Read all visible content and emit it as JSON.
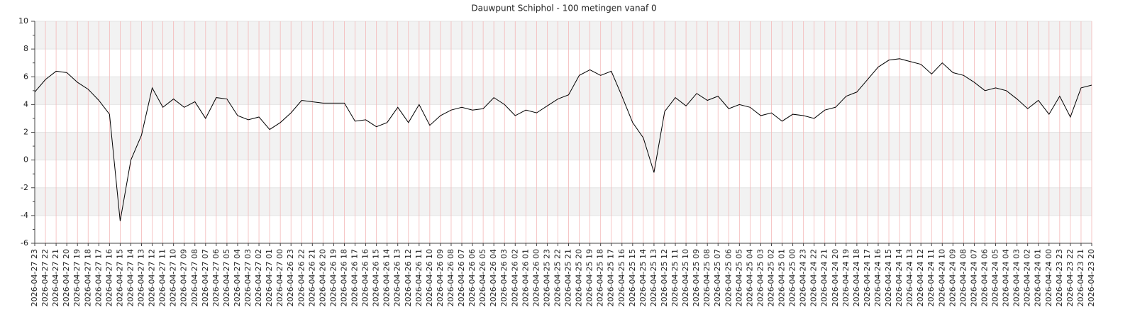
{
  "chart_data": {
    "type": "line",
    "title": "Dauwpunt Schiphol - 100 metingen vanaf 0",
    "categories": [
      "2026-04-27 23",
      "2026-04-27 22",
      "2026-04-27 21",
      "2026-04-27 20",
      "2026-04-27 19",
      "2026-04-27 18",
      "2026-04-27 17",
      "2026-04-27 16",
      "2026-04-27 15",
      "2026-04-27 14",
      "2026-04-27 13",
      "2026-04-27 12",
      "2026-04-27 11",
      "2026-04-27 10",
      "2026-04-27 09",
      "2026-04-27 08",
      "2026-04-27 07",
      "2026-04-27 06",
      "2026-04-27 05",
      "2026-04-27 04",
      "2026-04-27 03",
      "2026-04-27 02",
      "2026-04-27 01",
      "2026-04-27 00",
      "2026-04-26 23",
      "2026-04-26 22",
      "2026-04-26 21",
      "2026-04-26 20",
      "2026-04-26 19",
      "2026-04-26 18",
      "2026-04-26 17",
      "2026-04-26 16",
      "2026-04-26 15",
      "2026-04-26 14",
      "2026-04-26 13",
      "2026-04-26 12",
      "2026-04-26 11",
      "2026-04-26 10",
      "2026-04-26 09",
      "2026-04-26 08",
      "2026-04-26 07",
      "2026-04-26 06",
      "2026-04-26 05",
      "2026-04-26 04",
      "2026-04-26 03",
      "2026-04-26 02",
      "2026-04-26 01",
      "2026-04-26 00",
      "2026-04-25 23",
      "2026-04-25 22",
      "2026-04-25 21",
      "2026-04-25 20",
      "2026-04-25 19",
      "2026-04-25 18",
      "2026-04-25 17",
      "2026-04-25 16",
      "2026-04-25 15",
      "2026-04-25 14",
      "2026-04-25 13",
      "2026-04-25 12",
      "2026-04-25 11",
      "2026-04-25 10",
      "2026-04-25 09",
      "2026-04-25 08",
      "2026-04-25 07",
      "2026-04-25 06",
      "2026-04-25 05",
      "2026-04-25 04",
      "2026-04-25 03",
      "2026-04-25 02",
      "2026-04-25 01",
      "2026-04-25 00",
      "2026-04-24 23",
      "2026-04-24 22",
      "2026-04-24 21",
      "2026-04-24 20",
      "2026-04-24 19",
      "2026-04-24 18",
      "2026-04-24 17",
      "2026-04-24 16",
      "2026-04-24 15",
      "2026-04-24 14",
      "2026-04-24 13",
      "2026-04-24 12",
      "2026-04-24 11",
      "2026-04-24 10",
      "2026-04-24 09",
      "2026-04-24 08",
      "2026-04-24 07",
      "2026-04-24 06",
      "2026-04-24 05",
      "2026-04-24 04",
      "2026-04-24 03",
      "2026-04-24 02",
      "2026-04-24 01",
      "2026-04-24 00",
      "2026-04-23 23",
      "2026-04-23 22",
      "2026-04-23 21",
      "2026-04-23 20"
    ],
    "values": [
      4.9,
      5.8,
      6.4,
      6.3,
      5.6,
      5.1,
      4.3,
      3.3,
      -4.4,
      0.0,
      1.8,
      5.2,
      3.8,
      4.4,
      3.8,
      4.2,
      3.0,
      4.5,
      4.4,
      3.2,
      2.9,
      3.1,
      2.2,
      2.7,
      3.4,
      4.3,
      4.2,
      4.1,
      4.1,
      4.1,
      2.8,
      2.9,
      2.4,
      2.7,
      3.8,
      2.7,
      4.0,
      2.5,
      3.2,
      3.6,
      3.8,
      3.6,
      3.7,
      4.5,
      4.0,
      3.2,
      3.6,
      3.4,
      3.9,
      4.4,
      4.7,
      6.1,
      6.5,
      6.1,
      6.4,
      4.6,
      2.7,
      1.6,
      -0.9,
      3.5,
      4.5,
      3.9,
      4.8,
      4.3,
      4.6,
      3.7,
      4.0,
      3.8,
      3.2,
      3.4,
      2.8,
      3.3,
      3.2,
      3.0,
      3.6,
      3.8,
      4.6,
      4.9,
      5.8,
      6.7,
      7.2,
      7.3,
      7.1,
      6.9,
      6.2,
      7.0,
      6.3,
      6.1,
      5.6,
      5.0,
      5.2,
      5.0,
      4.4,
      3.7,
      4.3,
      3.3,
      4.6,
      3.1,
      5.2,
      5.4
    ],
    "color": "#000000",
    "ylim": [
      -6,
      10
    ],
    "yticks": [
      -6,
      -4,
      -2,
      0,
      2,
      4,
      6,
      8,
      10
    ],
    "grid": true
  }
}
